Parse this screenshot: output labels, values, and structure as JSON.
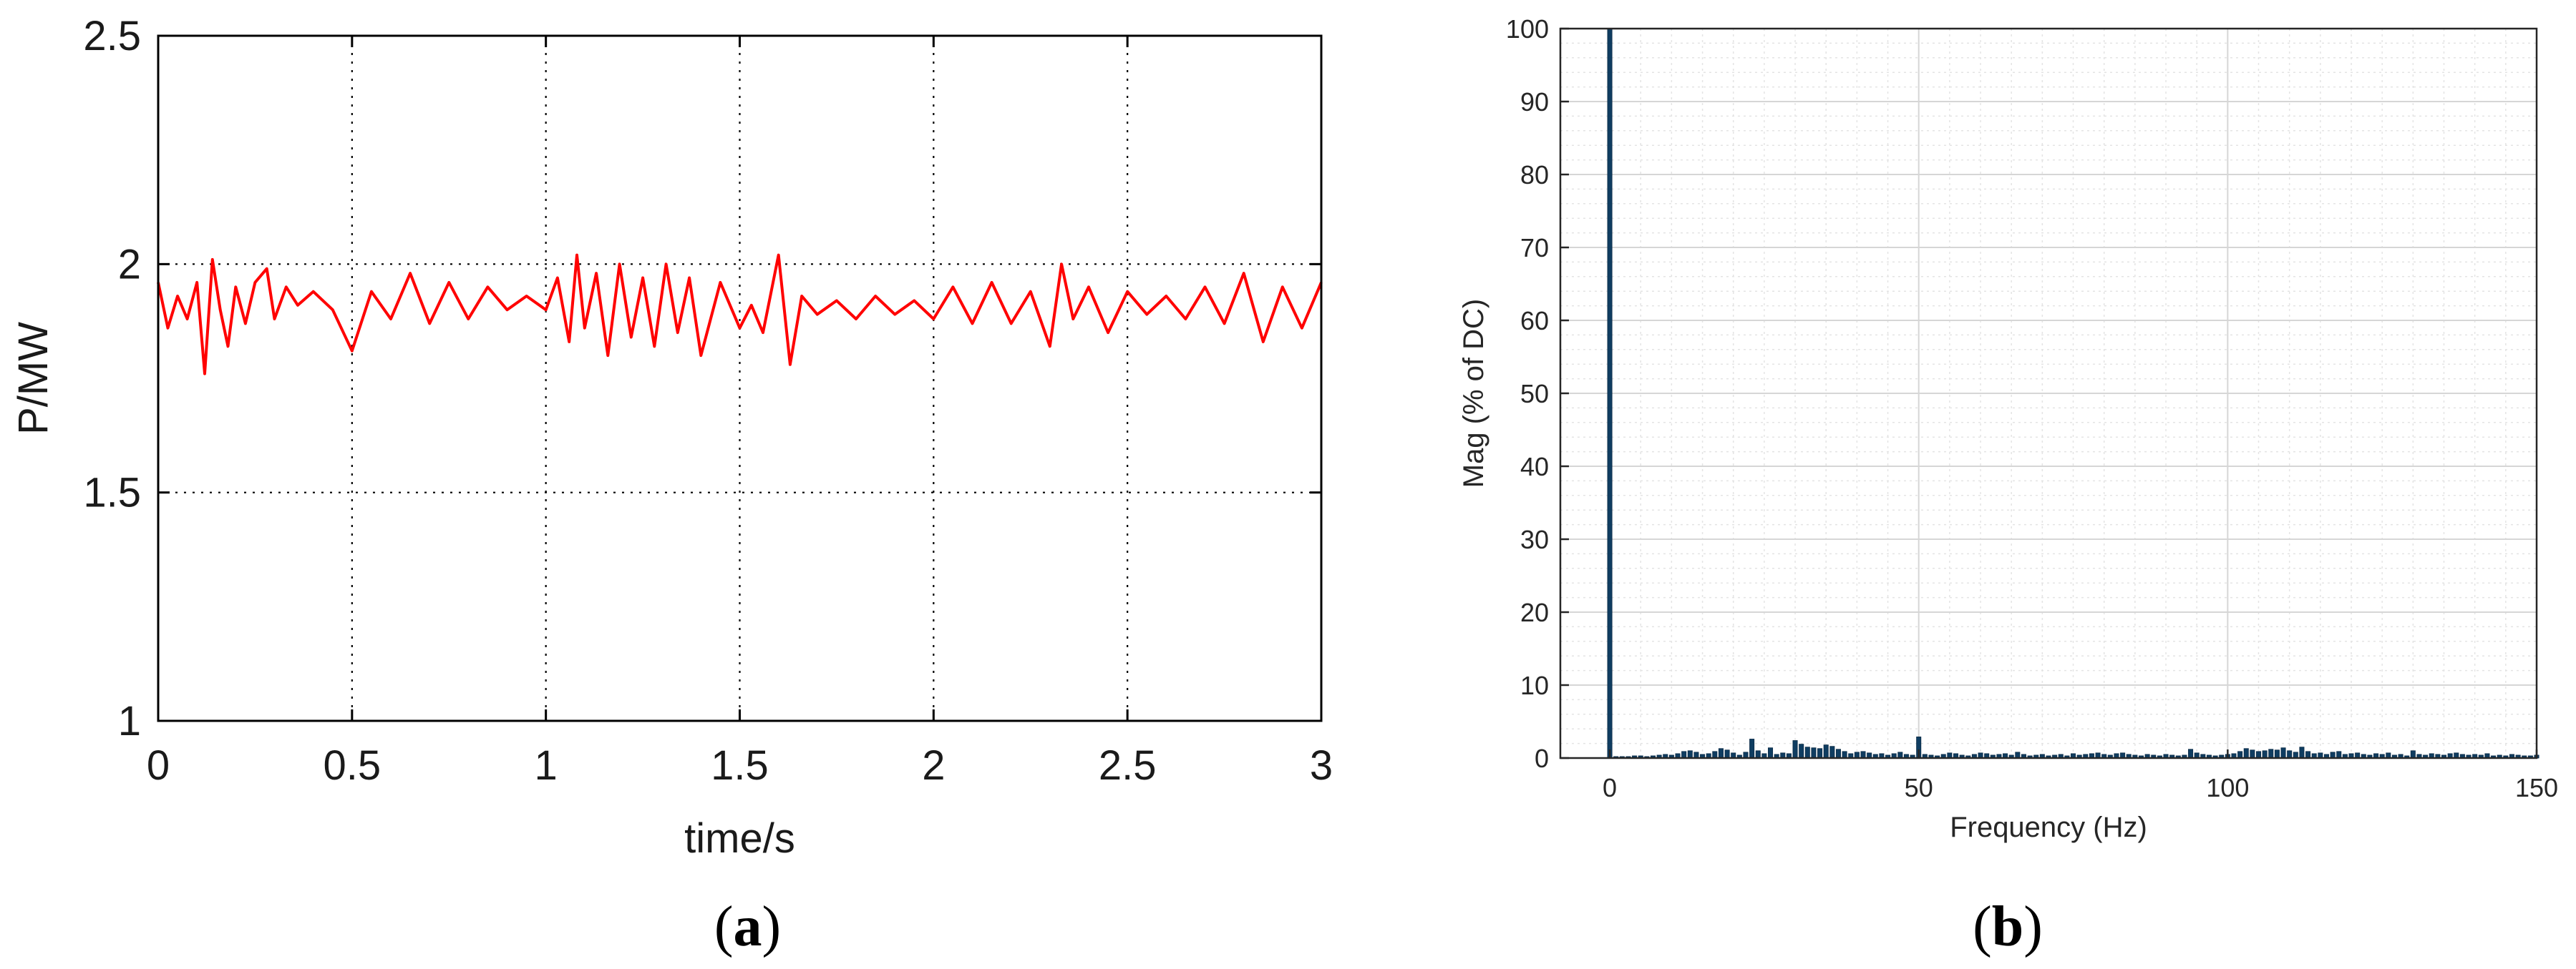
{
  "chart_data": [
    {
      "type": "line",
      "panel_label": "a",
      "xlabel": "time/s",
      "ylabel": "P/MW",
      "xlim": [
        0,
        3
      ],
      "ylim": [
        1,
        2.5
      ],
      "xticks": [
        "0",
        "0.5",
        "1",
        "1.5",
        "2",
        "2.5",
        "3"
      ],
      "yticks": [
        "1",
        "1.5",
        "2",
        "2.5"
      ],
      "grid": true,
      "series": [
        {
          "color": "#ff0000",
          "x": [
            0,
            0.025,
            0.05,
            0.075,
            0.1,
            0.12,
            0.14,
            0.16,
            0.18,
            0.2,
            0.225,
            0.25,
            0.28,
            0.3,
            0.33,
            0.36,
            0.4,
            0.45,
            0.5,
            0.55,
            0.6,
            0.65,
            0.7,
            0.75,
            0.8,
            0.85,
            0.9,
            0.95,
            1.0,
            1.03,
            1.06,
            1.08,
            1.1,
            1.13,
            1.16,
            1.19,
            1.22,
            1.25,
            1.28,
            1.31,
            1.34,
            1.37,
            1.4,
            1.45,
            1.5,
            1.53,
            1.56,
            1.6,
            1.63,
            1.66,
            1.7,
            1.75,
            1.8,
            1.85,
            1.9,
            1.95,
            2.0,
            2.05,
            2.1,
            2.15,
            2.2,
            2.25,
            2.3,
            2.33,
            2.36,
            2.4,
            2.45,
            2.5,
            2.55,
            2.6,
            2.65,
            2.7,
            2.75,
            2.8,
            2.85,
            2.9,
            2.95,
            3.0
          ],
          "y": [
            1.96,
            1.86,
            1.93,
            1.88,
            1.96,
            1.76,
            2.01,
            1.9,
            1.82,
            1.95,
            1.87,
            1.96,
            1.99,
            1.88,
            1.95,
            1.91,
            1.94,
            1.9,
            1.81,
            1.94,
            1.88,
            1.98,
            1.87,
            1.96,
            1.88,
            1.95,
            1.9,
            1.93,
            1.9,
            1.97,
            1.83,
            2.02,
            1.86,
            1.98,
            1.8,
            2.0,
            1.84,
            1.97,
            1.82,
            2.0,
            1.85,
            1.97,
            1.8,
            1.96,
            1.86,
            1.91,
            1.85,
            2.02,
            1.78,
            1.93,
            1.89,
            1.92,
            1.88,
            1.93,
            1.89,
            1.92,
            1.88,
            1.95,
            1.87,
            1.96,
            1.87,
            1.94,
            1.82,
            2.0,
            1.88,
            1.95,
            1.85,
            1.94,
            1.89,
            1.93,
            1.88,
            1.95,
            1.87,
            1.98,
            1.83,
            1.95,
            1.86,
            1.96
          ]
        }
      ]
    },
    {
      "type": "bar",
      "panel_label": "b",
      "xlabel": "Frequency (Hz)",
      "ylabel": "Mag (% of DC)",
      "xlim": [
        -8,
        150
      ],
      "ylim": [
        0,
        100
      ],
      "xticks": [
        "0",
        "50",
        "100",
        "150"
      ],
      "yticks": [
        "0",
        "10",
        "20",
        "30",
        "40",
        "50",
        "60",
        "70",
        "80",
        "90",
        "100"
      ],
      "grid": true,
      "minor_grid": true,
      "color": "#0f3d61",
      "x": [
        0,
        1,
        2,
        3,
        4,
        5,
        6,
        7,
        8,
        9,
        10,
        11,
        12,
        13,
        14,
        15,
        16,
        17,
        18,
        19,
        20,
        21,
        22,
        23,
        24,
        25,
        26,
        27,
        28,
        29,
        30,
        31,
        32,
        33,
        34,
        35,
        36,
        37,
        38,
        39,
        40,
        41,
        42,
        43,
        44,
        45,
        46,
        47,
        48,
        49,
        50,
        51,
        52,
        53,
        54,
        55,
        56,
        57,
        58,
        59,
        60,
        61,
        62,
        63,
        64,
        65,
        66,
        67,
        68,
        69,
        70,
        71,
        72,
        73,
        74,
        75,
        76,
        77,
        78,
        79,
        80,
        81,
        82,
        83,
        84,
        85,
        86,
        87,
        88,
        89,
        90,
        91,
        92,
        93,
        94,
        95,
        96,
        97,
        98,
        99,
        100,
        101,
        102,
        103,
        104,
        105,
        106,
        107,
        108,
        109,
        110,
        111,
        112,
        113,
        114,
        115,
        116,
        117,
        118,
        119,
        120,
        121,
        122,
        123,
        124,
        125,
        126,
        127,
        128,
        129,
        130,
        131,
        132,
        133,
        134,
        135,
        136,
        137,
        138,
        139,
        140,
        141,
        142,
        143,
        144,
        145,
        146,
        147,
        148,
        149,
        150
      ],
      "values": [
        100,
        0.2,
        0.2,
        0.2,
        0.3,
        0.3,
        0.2,
        0.3,
        0.4,
        0.5,
        0.4,
        0.6,
        0.9,
        1.0,
        0.8,
        0.5,
        0.6,
        0.9,
        1.3,
        1.1,
        0.7,
        0.4,
        0.8,
        2.6,
        1.0,
        0.6,
        1.4,
        0.5,
        0.7,
        0.6,
        2.4,
        1.9,
        1.5,
        1.4,
        1.3,
        1.8,
        1.6,
        1.2,
        0.9,
        0.6,
        0.8,
        0.9,
        0.7,
        0.5,
        0.6,
        0.4,
        0.6,
        0.8,
        0.5,
        0.4,
        2.9,
        0.5,
        0.4,
        0.3,
        0.5,
        0.7,
        0.6,
        0.4,
        0.3,
        0.5,
        0.7,
        0.6,
        0.4,
        0.5,
        0.6,
        0.4,
        0.8,
        0.5,
        0.3,
        0.4,
        0.5,
        0.3,
        0.4,
        0.5,
        0.3,
        0.6,
        0.4,
        0.5,
        0.6,
        0.7,
        0.5,
        0.4,
        0.6,
        0.7,
        0.5,
        0.4,
        0.3,
        0.5,
        0.4,
        0.3,
        0.5,
        0.4,
        0.3,
        0.4,
        1.2,
        0.7,
        0.5,
        0.4,
        0.3,
        0.4,
        0.5,
        0.6,
        0.9,
        1.3,
        1.1,
        0.9,
        1.0,
        1.2,
        1.1,
        1.4,
        1.0,
        0.8,
        1.5,
        0.9,
        0.6,
        0.7,
        0.5,
        0.8,
        0.9,
        0.5,
        0.6,
        0.7,
        0.5,
        0.4,
        0.6,
        0.5,
        0.7,
        0.4,
        0.5,
        0.3,
        1.0,
        0.5,
        0.4,
        0.6,
        0.5,
        0.4,
        0.6,
        0.7,
        0.5,
        0.4,
        0.5,
        0.4,
        0.6,
        0.3,
        0.4,
        0.3,
        0.5,
        0.4,
        0.3,
        0.3,
        0.4
      ]
    }
  ]
}
